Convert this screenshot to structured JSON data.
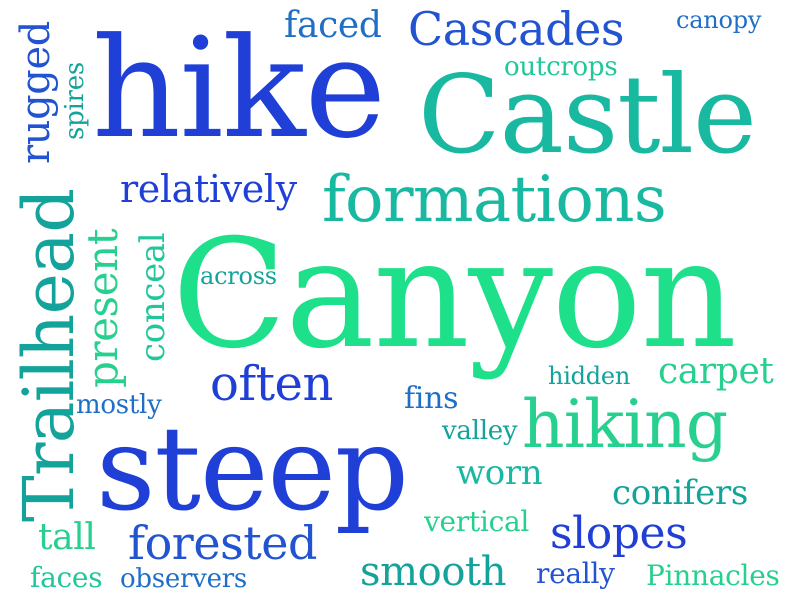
{
  "words": {
    "hike": "hike",
    "castle": "Castle",
    "canyon": "Canyon",
    "steep": "steep",
    "formations": "formations",
    "trailhead": "Trailhead",
    "hiking": "hiking",
    "cascades": "Cascades",
    "often": "often",
    "relatively": "relatively",
    "faced": "faced",
    "canopy": "canopy",
    "outcrops": "outcrops",
    "rugged": "rugged",
    "spires": "spires",
    "present": "present",
    "conceal": "conceal",
    "across": "across",
    "carpet": "carpet",
    "hidden": "hidden",
    "mostly": "mostly",
    "fins": "fins",
    "valley": "valley",
    "worn": "worn",
    "conifers": "conifers",
    "forested": "forested",
    "vertical": "vertical",
    "slopes": "slopes",
    "tall": "tall",
    "smooth": "smooth",
    "faces": "faces",
    "observers": "observers",
    "really": "really",
    "pinnacles": "Pinnacles"
  },
  "colors": {
    "deep_blue": "#1f3fd6",
    "mid_blue": "#1f6fc6",
    "teal": "#14a39a",
    "light_green": "#1fe08a"
  }
}
